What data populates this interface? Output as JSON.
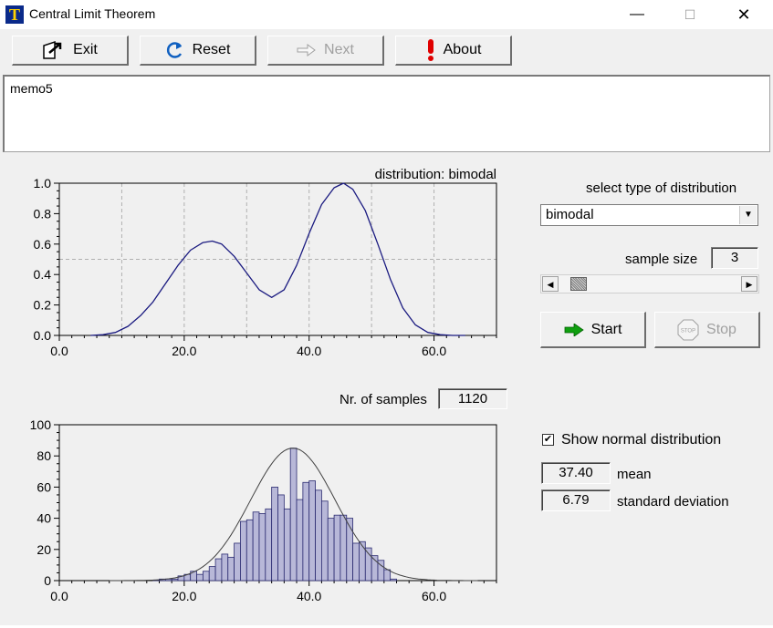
{
  "window": {
    "title": "Central Limit Theorem",
    "app_icon_letter": "T",
    "minimize": "—",
    "maximize": "☐",
    "close": "✕"
  },
  "toolbar": {
    "exit_label": "Exit",
    "reset_label": "Reset",
    "next_label": "Next",
    "about_label": "About"
  },
  "memo": {
    "text": "memo5"
  },
  "controls": {
    "select_label": "select type of distribution",
    "distribution_value": "bimodal",
    "sample_size_label": "sample size",
    "sample_size_value": "3",
    "sample_size_slider_fraction": 0.1,
    "start_label": "Start",
    "stop_label": "Stop",
    "stop_icon_text": "STOP",
    "samples_label": "Nr. of samples",
    "samples_value": "1120",
    "show_normal_label": "Show normal distribution",
    "show_normal_checked": true,
    "mean_value": "37.40",
    "mean_label": "mean",
    "sd_value": "6.79",
    "sd_label": "standard deviation"
  },
  "colors": {
    "density_line": "#1a1a80",
    "bar_fill": "#b8b8d8",
    "bar_stroke": "#2a2a70",
    "normal_curve": "#404040",
    "grid": "#b0b0b0",
    "start_arrow": "#10a010",
    "about_icon": "#e00000",
    "reset_icon": "#1060c0"
  },
  "chart_data": [
    {
      "type": "line",
      "title": "distribution: bimodal",
      "xlim": [
        0,
        70
      ],
      "ylim": [
        0,
        1
      ],
      "xticks": [
        "0.0",
        "20.0",
        "40.0",
        "60.0"
      ],
      "yticks": [
        "0.0",
        "0.2",
        "0.4",
        "0.6",
        "0.8",
        "1.0"
      ],
      "grid": true,
      "x": [
        5,
        7,
        9,
        11,
        13,
        15,
        17,
        19,
        21,
        23,
        24.5,
        26,
        28,
        30,
        32,
        34,
        36,
        38,
        40,
        42,
        44,
        45.5,
        47,
        49,
        51,
        53,
        55,
        57,
        59,
        61,
        63,
        65
      ],
      "y": [
        0.0,
        0.005,
        0.02,
        0.06,
        0.13,
        0.22,
        0.34,
        0.46,
        0.56,
        0.61,
        0.62,
        0.6,
        0.52,
        0.41,
        0.3,
        0.25,
        0.3,
        0.46,
        0.67,
        0.86,
        0.97,
        1.0,
        0.96,
        0.82,
        0.6,
        0.37,
        0.18,
        0.07,
        0.02,
        0.005,
        0.0,
        0.0
      ]
    },
    {
      "type": "bar",
      "title": "",
      "xlim": [
        0,
        70
      ],
      "ylim": [
        0,
        100
      ],
      "xticks": [
        "0.0",
        "20.0",
        "40.0",
        "60.0"
      ],
      "yticks": [
        "0",
        "20",
        "40",
        "60",
        "80",
        "100"
      ],
      "grid": false,
      "bin_width": 1,
      "x": [
        15,
        16,
        17,
        18,
        19,
        20,
        21,
        22,
        23,
        24,
        25,
        26,
        27,
        28,
        29,
        30,
        31,
        32,
        33,
        34,
        35,
        36,
        37,
        38,
        39,
        40,
        41,
        42,
        43,
        44,
        45,
        46,
        47,
        48,
        49,
        50,
        51,
        52,
        53
      ],
      "values": [
        0,
        1,
        1,
        1,
        3,
        4,
        6,
        4,
        6,
        9,
        14,
        17,
        15,
        24,
        38,
        39,
        44,
        43,
        46,
        60,
        55,
        46,
        85,
        52,
        63,
        64,
        58,
        51,
        40,
        42,
        42,
        40,
        24,
        25,
        21,
        16,
        13,
        7,
        1
      ],
      "normal_overlay": {
        "mean": 37.4,
        "sd": 6.79,
        "peak": 85
      }
    }
  ]
}
